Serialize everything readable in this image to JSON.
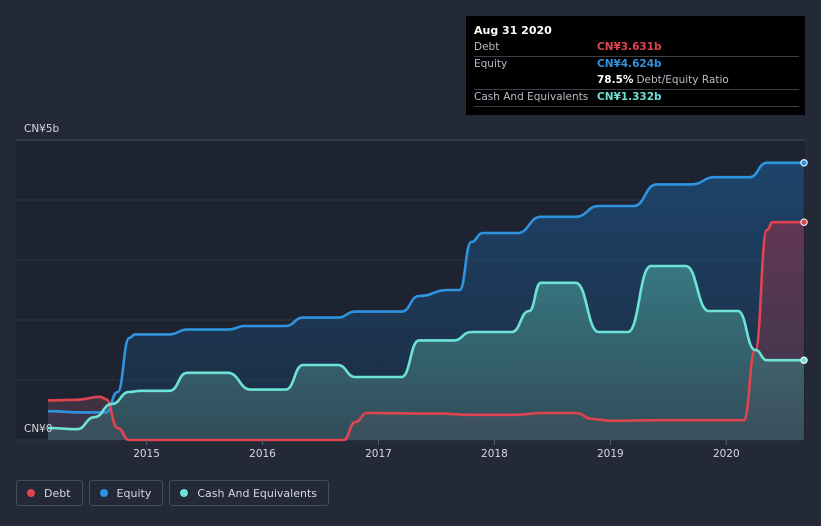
{
  "tooltip": {
    "date": "Aug 31 2020",
    "debt_label": "Debt",
    "debt_value": "CN¥3.631b",
    "equity_label": "Equity",
    "equity_value": "CN¥4.624b",
    "ratio_value": "78.5%",
    "ratio_label": "Debt/Equity Ratio",
    "cash_label": "Cash And Equivalents",
    "cash_value": "CN¥1.332b"
  },
  "legend": [
    {
      "label": "Debt",
      "color": "#e0444f"
    },
    {
      "label": "Equity",
      "color": "#2f94e0"
    },
    {
      "label": "Cash And Equivalents",
      "color": "#6de3d6"
    }
  ],
  "chart_data": {
    "type": "area",
    "title": "",
    "xlabel": "",
    "ylabel": "",
    "y_top_label": "CN¥5b",
    "y_bottom_label": "CN¥0",
    "ylim": [
      0,
      5
    ],
    "xlim": [
      2014.15,
      2020.67
    ],
    "x_ticks": [
      {
        "value": 2015,
        "label": "2015"
      },
      {
        "value": 2016,
        "label": "2016"
      },
      {
        "value": 2017,
        "label": "2017"
      },
      {
        "value": 2018,
        "label": "2018"
      },
      {
        "value": 2019,
        "label": "2019"
      },
      {
        "value": 2020,
        "label": "2020"
      }
    ],
    "colors": {
      "debt": "#e0444f",
      "equity": "#2f94e0",
      "cash": "#6de3d6"
    },
    "series": [
      {
        "name": "Debt",
        "key": "debt",
        "points": [
          [
            2014.15,
            0.66
          ],
          [
            2014.4,
            0.67
          ],
          [
            2014.6,
            0.72
          ],
          [
            2014.65,
            0.68
          ],
          [
            2014.75,
            0.2
          ],
          [
            2014.85,
            0.0
          ],
          [
            2016.7,
            0.0
          ],
          [
            2016.8,
            0.3
          ],
          [
            2016.9,
            0.45
          ],
          [
            2017.5,
            0.44
          ],
          [
            2017.8,
            0.42
          ],
          [
            2018.2,
            0.42
          ],
          [
            2018.4,
            0.45
          ],
          [
            2018.7,
            0.45
          ],
          [
            2018.85,
            0.35
          ],
          [
            2019.0,
            0.32
          ],
          [
            2019.4,
            0.33
          ],
          [
            2019.85,
            0.33
          ],
          [
            2020.15,
            0.33
          ],
          [
            2020.25,
            1.5
          ],
          [
            2020.35,
            3.5
          ],
          [
            2020.4,
            3.63
          ],
          [
            2020.67,
            3.63
          ]
        ]
      },
      {
        "name": "Equity",
        "key": "equity",
        "points": [
          [
            2014.15,
            0.48
          ],
          [
            2014.45,
            0.46
          ],
          [
            2014.65,
            0.46
          ],
          [
            2014.75,
            0.8
          ],
          [
            2014.85,
            1.7
          ],
          [
            2014.9,
            1.76
          ],
          [
            2015.2,
            1.76
          ],
          [
            2015.35,
            1.84
          ],
          [
            2015.7,
            1.84
          ],
          [
            2015.85,
            1.9
          ],
          [
            2016.2,
            1.9
          ],
          [
            2016.35,
            2.04
          ],
          [
            2016.65,
            2.04
          ],
          [
            2016.8,
            2.14
          ],
          [
            2017.2,
            2.14
          ],
          [
            2017.35,
            2.4
          ],
          [
            2017.6,
            2.5
          ],
          [
            2017.7,
            2.5
          ],
          [
            2017.8,
            3.3
          ],
          [
            2017.9,
            3.45
          ],
          [
            2018.2,
            3.45
          ],
          [
            2018.4,
            3.72
          ],
          [
            2018.7,
            3.72
          ],
          [
            2018.9,
            3.9
          ],
          [
            2019.2,
            3.9
          ],
          [
            2019.4,
            4.26
          ],
          [
            2019.7,
            4.26
          ],
          [
            2019.9,
            4.38
          ],
          [
            2020.2,
            4.38
          ],
          [
            2020.35,
            4.62
          ],
          [
            2020.67,
            4.62
          ]
        ]
      },
      {
        "name": "Cash And Equivalents",
        "key": "cash",
        "points": [
          [
            2014.15,
            0.2
          ],
          [
            2014.4,
            0.18
          ],
          [
            2014.55,
            0.38
          ],
          [
            2014.7,
            0.6
          ],
          [
            2014.85,
            0.8
          ],
          [
            2014.95,
            0.82
          ],
          [
            2015.2,
            0.82
          ],
          [
            2015.35,
            1.12
          ],
          [
            2015.7,
            1.12
          ],
          [
            2015.9,
            0.84
          ],
          [
            2016.2,
            0.84
          ],
          [
            2016.35,
            1.25
          ],
          [
            2016.65,
            1.25
          ],
          [
            2016.8,
            1.05
          ],
          [
            2017.2,
            1.05
          ],
          [
            2017.35,
            1.66
          ],
          [
            2017.65,
            1.66
          ],
          [
            2017.8,
            1.8
          ],
          [
            2018.15,
            1.8
          ],
          [
            2018.3,
            2.15
          ],
          [
            2018.4,
            2.62
          ],
          [
            2018.7,
            2.62
          ],
          [
            2018.9,
            1.8
          ],
          [
            2019.15,
            1.8
          ],
          [
            2019.35,
            2.9
          ],
          [
            2019.65,
            2.9
          ],
          [
            2019.85,
            2.15
          ],
          [
            2020.1,
            2.15
          ],
          [
            2020.25,
            1.5
          ],
          [
            2020.35,
            1.33
          ],
          [
            2020.67,
            1.33
          ]
        ]
      }
    ]
  }
}
